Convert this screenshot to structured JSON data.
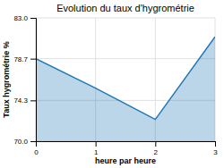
{
  "chart_data": {
    "type": "area",
    "title": "Evolution du taux d'hygrométrie",
    "xlabel": "heure par heure",
    "ylabel": "Taux hygrométrie %",
    "x": [
      0,
      1,
      2,
      3
    ],
    "values": [
      78.7,
      75.6,
      72.3,
      81.0
    ],
    "xlim": [
      0,
      3
    ],
    "ylim": [
      70.0,
      83.0
    ],
    "xticks": [
      0,
      1,
      2,
      3
    ],
    "yticks": [
      {
        "value": 70.0,
        "label": "70.0"
      },
      74.3,
      78.7,
      {
        "value": 83.0,
        "label": "83.0"
      }
    ],
    "grid": true
  }
}
